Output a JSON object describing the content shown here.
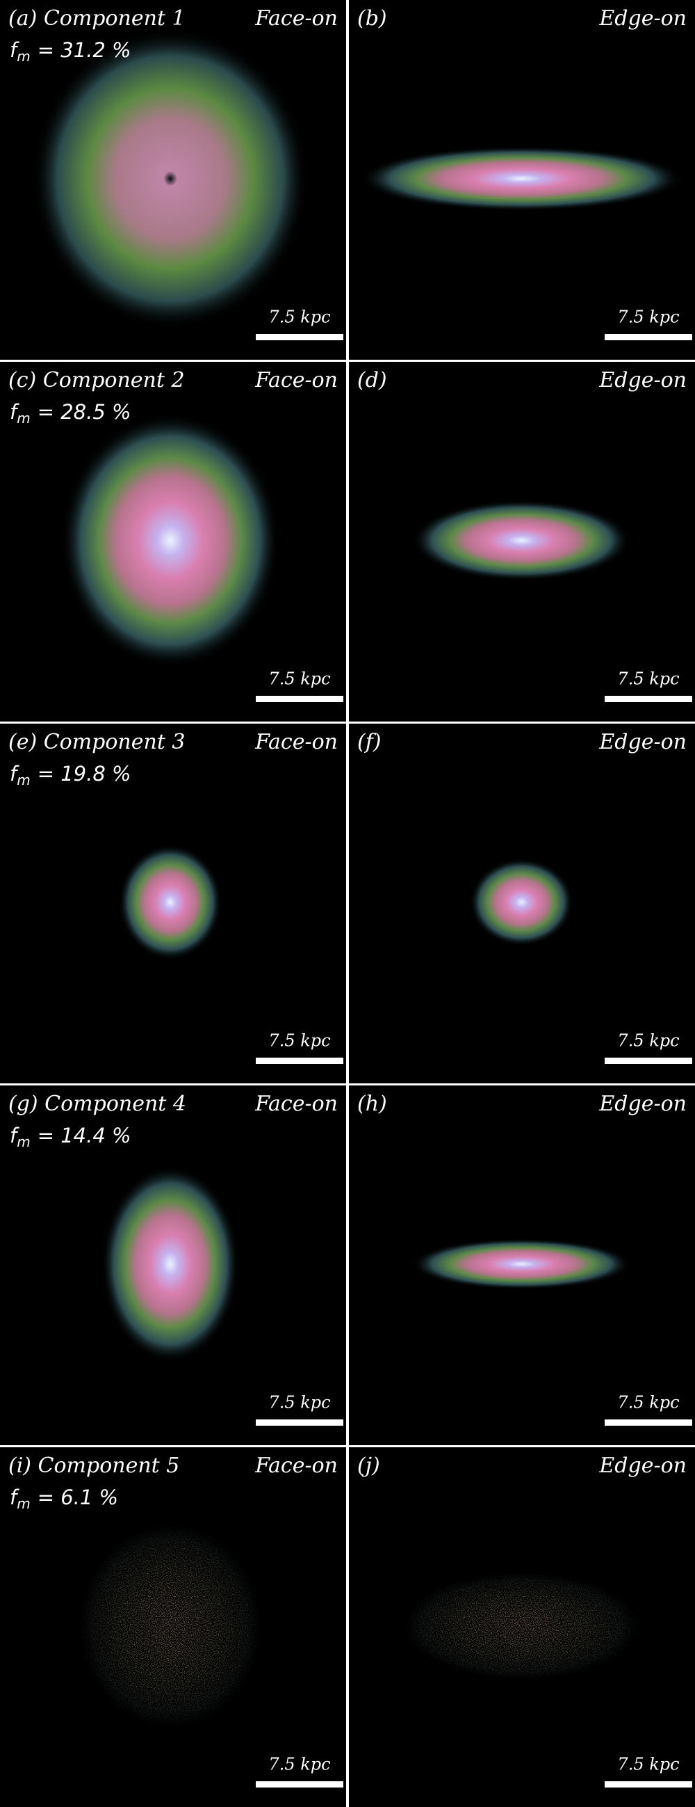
{
  "rows": [
    {
      "face": {
        "label": "(a) Component 1",
        "orientation": "Face-on",
        "fm_symbol": "f",
        "fm_sub": "m",
        "fm_value": "= 31.2 %",
        "scale": "7.5 kpc"
      },
      "edge": {
        "label": "(b)",
        "orientation": "Edge-on",
        "scale": "7.5 kpc"
      }
    },
    {
      "face": {
        "label": "(c) Component 2",
        "orientation": "Face-on",
        "fm_symbol": "f",
        "fm_sub": "m",
        "fm_value": "= 28.5 %",
        "scale": "7.5 kpc"
      },
      "edge": {
        "label": "(d)",
        "orientation": "Edge-on",
        "scale": "7.5 kpc"
      }
    },
    {
      "face": {
        "label": "(e) Component 3",
        "orientation": "Face-on",
        "fm_symbol": "f",
        "fm_sub": "m",
        "fm_value": "= 19.8 %",
        "scale": "7.5 kpc"
      },
      "edge": {
        "label": "(f)",
        "orientation": "Edge-on",
        "scale": "7.5 kpc"
      }
    },
    {
      "face": {
        "label": "(g) Component 4",
        "orientation": "Face-on",
        "fm_symbol": "f",
        "fm_sub": "m",
        "fm_value": "= 14.4 %",
        "scale": "7.5 kpc"
      },
      "edge": {
        "label": "(h)",
        "orientation": "Edge-on",
        "scale": "7.5 kpc"
      }
    },
    {
      "face": {
        "label": "(i) Component 5",
        "orientation": "Face-on",
        "fm_symbol": "f",
        "fm_sub": "m",
        "fm_value": "= 6.1 %",
        "scale": "7.5 kpc"
      },
      "edge": {
        "label": "(j)",
        "orientation": "Edge-on",
        "scale": "7.5 kpc"
      }
    }
  ]
}
